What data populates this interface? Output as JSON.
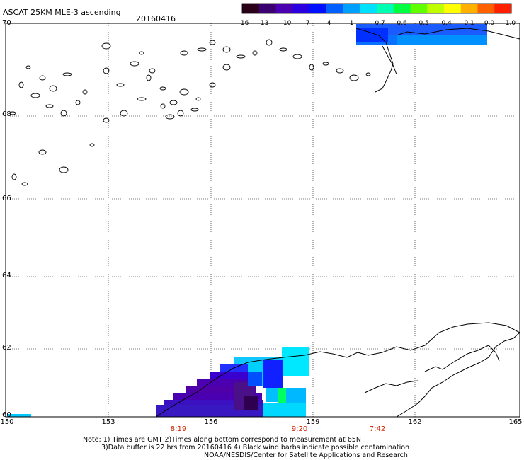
{
  "header": {
    "title": "ASCAT 25KM MLE-3 ascending",
    "date": "20160416"
  },
  "colorbar": {
    "ticks": [
      "-16",
      "-13",
      "-10",
      "-7",
      "-4",
      "-1",
      "-0.7",
      "-0.6",
      "-0.5",
      "-0.4",
      "-0.1",
      "0.0",
      "1.0"
    ],
    "colors": [
      "#2a0018",
      "#3a0070",
      "#4a00b0",
      "#2a00e0",
      "#0010ff",
      "#0060ff",
      "#00a0ff",
      "#00e0ff",
      "#00ffb0",
      "#00ff40",
      "#60ff00",
      "#c0ff00",
      "#ffff00",
      "#ffb000",
      "#ff6000",
      "#ff2000"
    ]
  },
  "map": {
    "lat_labels": [
      "70",
      "68",
      "66",
      "64",
      "62",
      "60"
    ],
    "lon_labels": [
      "150",
      "153",
      "156",
      "159",
      "162",
      "165"
    ],
    "pass_times": [
      "8:19",
      "9:20",
      "7:42"
    ],
    "lat_range": [
      60,
      70
    ],
    "lon_range": [
      150,
      165
    ]
  },
  "footer": {
    "note1": "Note: 1) Times are GMT 2)Times along bottom correspond to measurement at 65N",
    "note2": "3)Data buffer is 22 hrs from 20160416 4) Black wind barbs indicate possible contamination",
    "note3": "NOAA/NESDIS/Center for Satellite Applications and Research"
  }
}
